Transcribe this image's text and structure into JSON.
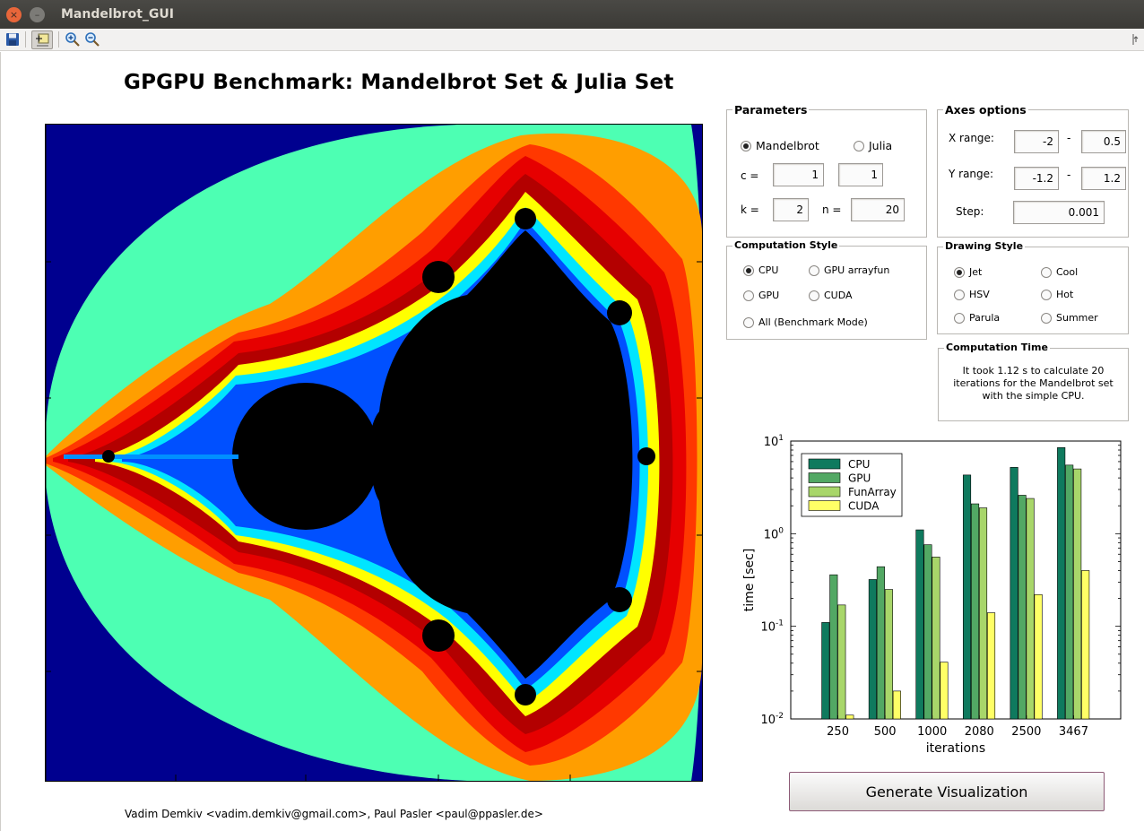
{
  "window": {
    "title": "Mandelbrot_GUI",
    "close_glyph": "×",
    "min_glyph": "–"
  },
  "toolbar": {
    "items": [
      "save-icon",
      "data-cursor-icon",
      "zoom-in-icon",
      "zoom-out-icon"
    ]
  },
  "heading": "GPGPU Benchmark: Mandelbrot Set & Julia Set",
  "parameters": {
    "title": "Parameters",
    "mandelbrot_label": "Mandelbrot",
    "julia_label": "Julia",
    "set_selected": "Mandelbrot",
    "c_label": "c =",
    "c_real": "1",
    "c_imag": "1",
    "k_label": "k =",
    "k_value": "2",
    "n_label": "n =",
    "n_value": "20"
  },
  "axes_options": {
    "title": "Axes options",
    "x_label": "X range:",
    "x_min": "-2",
    "x_max": "0.5",
    "y_label": "Y range:",
    "y_min": "-1.2",
    "y_max": "1.2",
    "dash": "-",
    "step_label": "Step:",
    "step_value": "0.001"
  },
  "computation_style": {
    "title": "Computation Style",
    "options": [
      "CPU",
      "GPU arrayfun",
      "GPU",
      "CUDA",
      "All (Benchmark Mode)"
    ],
    "selected": "CPU"
  },
  "drawing_style": {
    "title": "Drawing Style",
    "options": [
      "Jet",
      "Cool",
      "HSV",
      "Hot",
      "Parula",
      "Summer"
    ],
    "selected": "Jet"
  },
  "computation_time": {
    "title": "Computation Time",
    "text": "It took 1.12 s to calculate 20 iterations for the Mandelbrot set with the simple CPU."
  },
  "generate_button": "Generate Visualization",
  "footer": "Vadim Demkiv <vadim.demkiv@gmail.com>, Paul Pasler <paul@ppasler.de>",
  "colors": {
    "jet_background": "#00008f",
    "jet_outer": "#4dffb3",
    "jet_orange": "#ff9e00",
    "jet_red_light": "#ff3800",
    "jet_red": "#e60000",
    "jet_red_dark": "#b30000",
    "set_interior": "#000000"
  },
  "chart_data": {
    "type": "bar",
    "categories": [
      "250",
      "500",
      "1000",
      "2080",
      "2500",
      "3467"
    ],
    "series": [
      {
        "name": "CPU",
        "color": "#0f7a5e",
        "values": [
          0.11,
          0.32,
          1.1,
          4.3,
          5.2,
          8.5
        ]
      },
      {
        "name": "GPU",
        "color": "#52a864",
        "values": [
          0.36,
          0.44,
          0.76,
          2.1,
          2.6,
          5.5
        ]
      },
      {
        "name": "FunArray",
        "color": "#a8d66a",
        "values": [
          0.17,
          0.25,
          0.56,
          1.9,
          2.4,
          5.0
        ]
      },
      {
        "name": "CUDA",
        "color": "#ffff66",
        "values": [
          0.011,
          0.02,
          0.041,
          0.14,
          0.22,
          0.4
        ]
      }
    ],
    "xlabel": "iterations",
    "ylabel": "time [sec]",
    "yscale": "log",
    "ylim": [
      0.01,
      10
    ],
    "yticks": [
      {
        "base": "10",
        "exp": "-2"
      },
      {
        "base": "10",
        "exp": "-1"
      },
      {
        "base": "10",
        "exp": "0"
      },
      {
        "base": "10",
        "exp": "1"
      }
    ],
    "legend": "top-left"
  }
}
